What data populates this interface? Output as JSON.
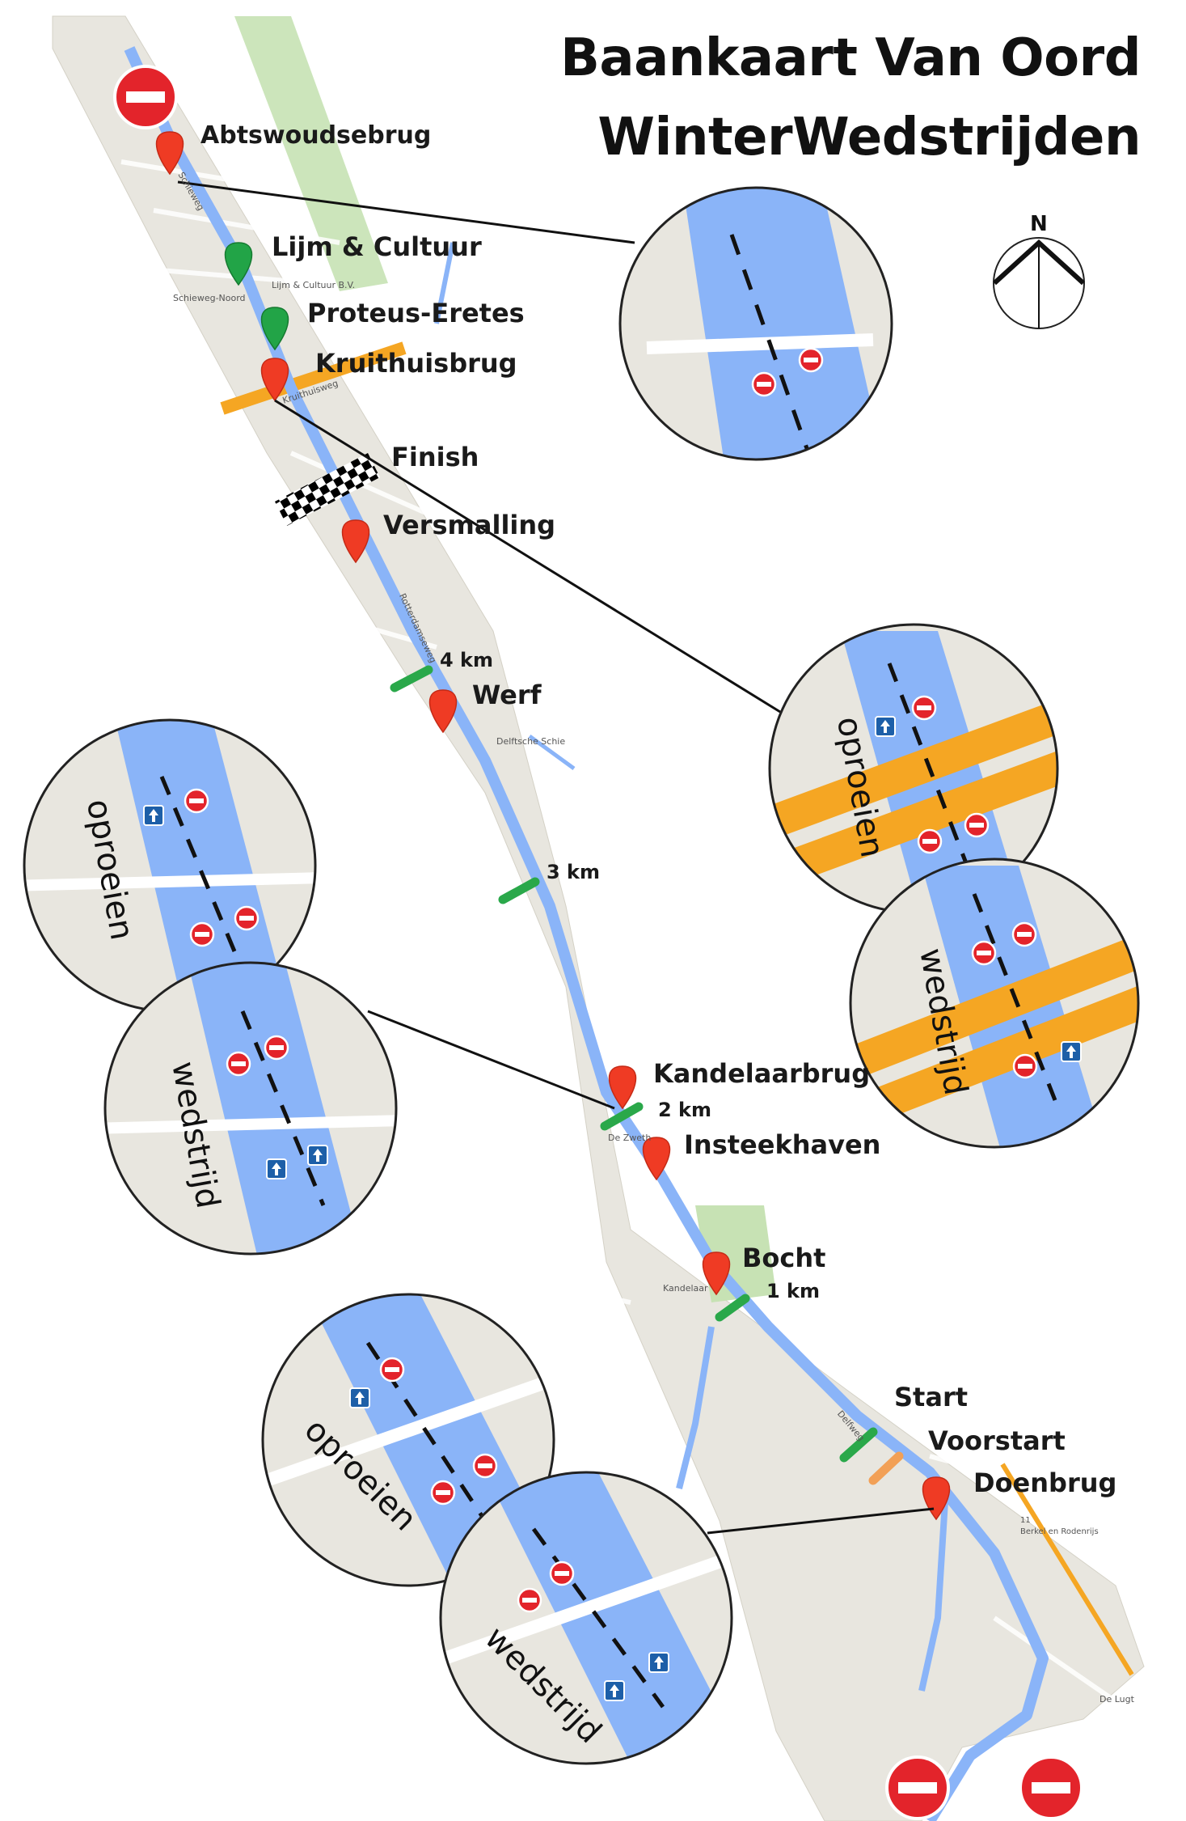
{
  "title": {
    "line1": "Baankaart Van Oord",
    "line2": "WinterWedstrijden"
  },
  "compass": {
    "label": "N"
  },
  "places": {
    "abtswoudsebrug": "Abtswoudsebrug",
    "lijm": "Lijm & Cultuur",
    "proteus": "Proteus-Eretes",
    "kruithuisbrug": "Kruithuisbrug",
    "finish": "Finish",
    "versmalling": "Versmalling",
    "werf": "Werf",
    "kandelaarbrug": "Kandelaarbrug",
    "insteekhaven": "Insteekhaven",
    "bocht": "Bocht",
    "start": "Start",
    "voorstart": "Voorstart",
    "doenbrug": "Doenbrug"
  },
  "distance_marks": {
    "km4": "4 km",
    "km3": "3 km",
    "km2": "2 km",
    "km1": "1 km"
  },
  "modes": {
    "warmup": "oproeien",
    "race": "wedstrijd"
  },
  "street_labels": {
    "s1": "Schieweg",
    "s2": "Lijm & Cultuur B.V.",
    "s3": "Schieweg-Noord",
    "s4": "Kruithuisweg",
    "s5": "Rotterdamseweg",
    "s6": "Delftsche Schie",
    "s7": "De Zweth",
    "s8": "Kandelaar",
    "s9": "Delfweg",
    "s10": "Berkel en Rodenrijs",
    "s11": "De Lugt",
    "s12": "11"
  },
  "colors": {
    "water": "#8ab4f8",
    "land": "#e8e6df",
    "park": "#c7e2b4",
    "road": "#f5a623",
    "pin_red": "#ef3b24",
    "pin_green": "#22a447",
    "km_green": "#2aa84a",
    "voorstart": "#f2a056",
    "no_entry": "#e3242b",
    "arrow_sign": "#1d5fa8"
  },
  "icons": [
    "no-entry-icon",
    "map-pin-icon",
    "checkered-flag-icon",
    "compass-icon",
    "one-way-arrow-icon"
  ]
}
